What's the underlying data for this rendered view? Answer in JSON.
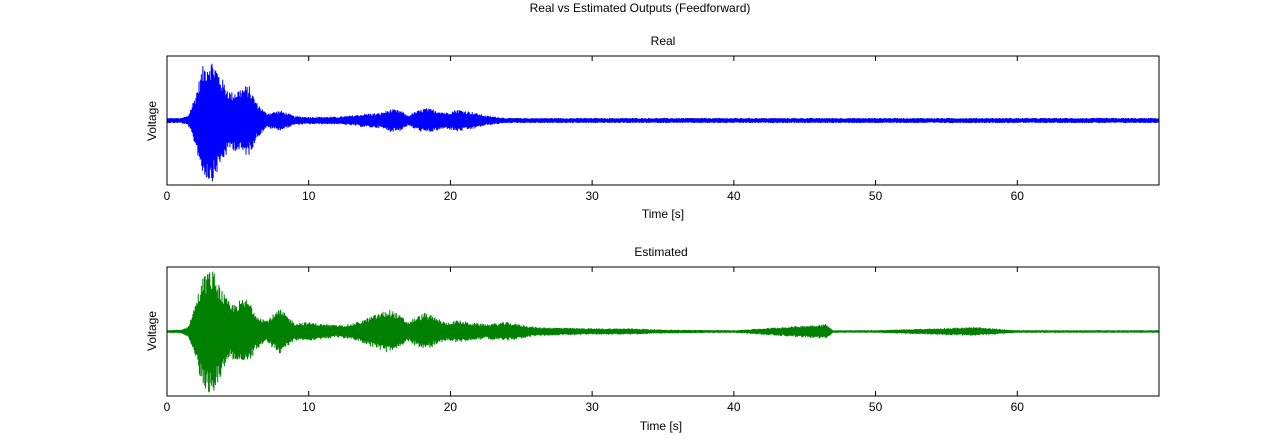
{
  "figure": {
    "title": "Real vs Estimated Outputs (Feedforward)"
  },
  "chart_data": [
    {
      "type": "line",
      "title": "Real",
      "xlabel": "Time [s]",
      "ylabel": "Voltage",
      "xlim": [
        0,
        70
      ],
      "xticks": [
        0,
        10,
        20,
        30,
        40,
        50,
        60
      ],
      "yticks": [],
      "color": "#0000ff",
      "series": [
        {
          "x": [
            0,
            1,
            1.5,
            2,
            2.5,
            3,
            3.3,
            3.6,
            4,
            4.5,
            5,
            5.5,
            5.8,
            6.3,
            7,
            8,
            8.5,
            9,
            10,
            11,
            12,
            13,
            14,
            15,
            15.8,
            16.5,
            17,
            17.5,
            18.2,
            19,
            19.7,
            20.5,
            21.5,
            22.5,
            24,
            26,
            30,
            40,
            50,
            60,
            70
          ],
          "envelope": [
            0.04,
            0.04,
            0.08,
            0.4,
            0.85,
            0.98,
            0.95,
            0.8,
            0.62,
            0.45,
            0.5,
            0.55,
            0.55,
            0.3,
            0.12,
            0.16,
            0.12,
            0.07,
            0.06,
            0.06,
            0.06,
            0.08,
            0.11,
            0.12,
            0.18,
            0.16,
            0.08,
            0.14,
            0.2,
            0.17,
            0.13,
            0.18,
            0.14,
            0.08,
            0.04,
            0.04,
            0.04,
            0.04,
            0.04,
            0.04,
            0.04
          ]
        }
      ]
    },
    {
      "type": "line",
      "title": "Estimated",
      "xlabel": "Time [s]",
      "ylabel": "Voltage",
      "xlim": [
        0,
        70
      ],
      "xticks": [
        0,
        10,
        20,
        30,
        40,
        50,
        60
      ],
      "yticks": [],
      "color": "#008000",
      "series": [
        {
          "x": [
            0,
            1,
            1.5,
            2,
            2.5,
            3,
            3.3,
            3.6,
            4,
            4.5,
            5,
            5.5,
            5.8,
            6.3,
            7,
            8,
            8.5,
            9,
            10,
            11,
            12,
            13,
            14,
            15,
            15.8,
            16.5,
            17,
            17.5,
            18.2,
            19,
            19.7,
            20.5,
            21.5,
            22.5,
            24,
            26,
            30,
            33,
            35,
            40,
            46.5,
            47,
            50,
            57,
            60,
            70
          ],
          "envelope": [
            0.02,
            0.03,
            0.08,
            0.45,
            0.85,
            0.98,
            0.95,
            0.8,
            0.6,
            0.42,
            0.48,
            0.52,
            0.5,
            0.28,
            0.18,
            0.36,
            0.25,
            0.14,
            0.15,
            0.12,
            0.1,
            0.12,
            0.2,
            0.3,
            0.35,
            0.25,
            0.15,
            0.22,
            0.3,
            0.22,
            0.14,
            0.18,
            0.14,
            0.12,
            0.15,
            0.07,
            0.05,
            0.05,
            0.03,
            0.02,
            0.12,
            0.02,
            0.02,
            0.07,
            0.02,
            0.02
          ]
        }
      ]
    }
  ]
}
